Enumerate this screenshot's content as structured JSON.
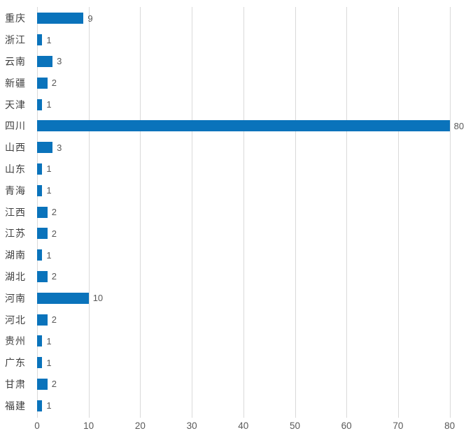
{
  "colors": {
    "bar": "#0a73bb",
    "gridline": "#d9d9d9",
    "category_label": "#3f3f3f",
    "value_label": "#595959",
    "tick_label": "#595959",
    "background": "#ffffff"
  },
  "chart_data": {
    "type": "bar",
    "orientation": "horizontal",
    "title": "",
    "xlabel": "",
    "ylabel": "",
    "categories": [
      "重庆",
      "浙江",
      "云南",
      "新疆",
      "天津",
      "四川",
      "山西",
      "山东",
      "青海",
      "江西",
      "江苏",
      "湖南",
      "湖北",
      "河南",
      "河北",
      "贵州",
      "广东",
      "甘肃",
      "福建"
    ],
    "values": [
      9,
      1,
      3,
      2,
      1,
      80,
      3,
      1,
      1,
      2,
      2,
      1,
      2,
      10,
      2,
      1,
      1,
      2,
      1
    ],
    "xlim": [
      0,
      80
    ],
    "x_ticks": [
      0,
      10,
      20,
      30,
      40,
      50,
      60,
      70,
      80
    ],
    "grid": "vertical-gridlines",
    "legend": "none",
    "data_labels": "value shown at end of each bar"
  }
}
